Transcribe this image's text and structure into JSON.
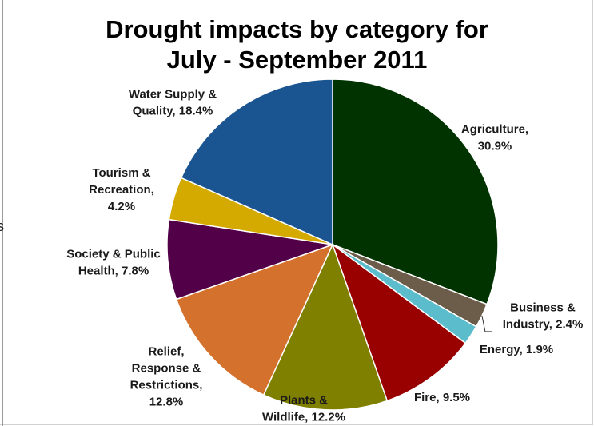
{
  "edge_text": "s",
  "chart_data": {
    "type": "pie",
    "title_lines": [
      "Drought impacts by category for",
      "July - September 2011"
    ],
    "start_angle_deg": 0,
    "direction": "clockwise",
    "slices": [
      {
        "category": "Agriculture",
        "value": 30.9,
        "label_lines": [
          "Agriculture,",
          "30.9%"
        ],
        "color": "#003300"
      },
      {
        "category": "Business & Industry",
        "value": 2.4,
        "label_lines": [
          "Business &",
          "Industry, 2.4%"
        ],
        "color": "#6b5d4a"
      },
      {
        "category": "Energy",
        "value": 1.9,
        "label_lines": [
          "Energy, 1.9%"
        ],
        "color": "#5bbccc"
      },
      {
        "category": "Fire",
        "value": 9.5,
        "label_lines": [
          "Fire, 9.5%"
        ],
        "color": "#990000"
      },
      {
        "category": "Plants & Wildlife",
        "value": 12.2,
        "label_lines": [
          "Plants &",
          "Wildlife, 12.2%"
        ],
        "color": "#808000"
      },
      {
        "category": "Relief, Response & Restrictions",
        "value": 12.8,
        "label_lines": [
          "Relief,",
          "Response &",
          "Restrictions,",
          "12.8%"
        ],
        "color": "#d4712c"
      },
      {
        "category": "Society & Public Health",
        "value": 7.8,
        "label_lines": [
          "Society & Public",
          "Health, 7.8%"
        ],
        "color": "#520048"
      },
      {
        "category": "Tourism & Recreation",
        "value": 4.2,
        "label_lines": [
          "Tourism &",
          "Recreation,",
          "4.2%"
        ],
        "color": "#d4aa00"
      },
      {
        "category": "Water Supply & Quality",
        "value": 18.4,
        "label_lines": [
          "Water Supply &",
          "Quality, 18.4%"
        ],
        "color": "#1b5591"
      }
    ]
  }
}
